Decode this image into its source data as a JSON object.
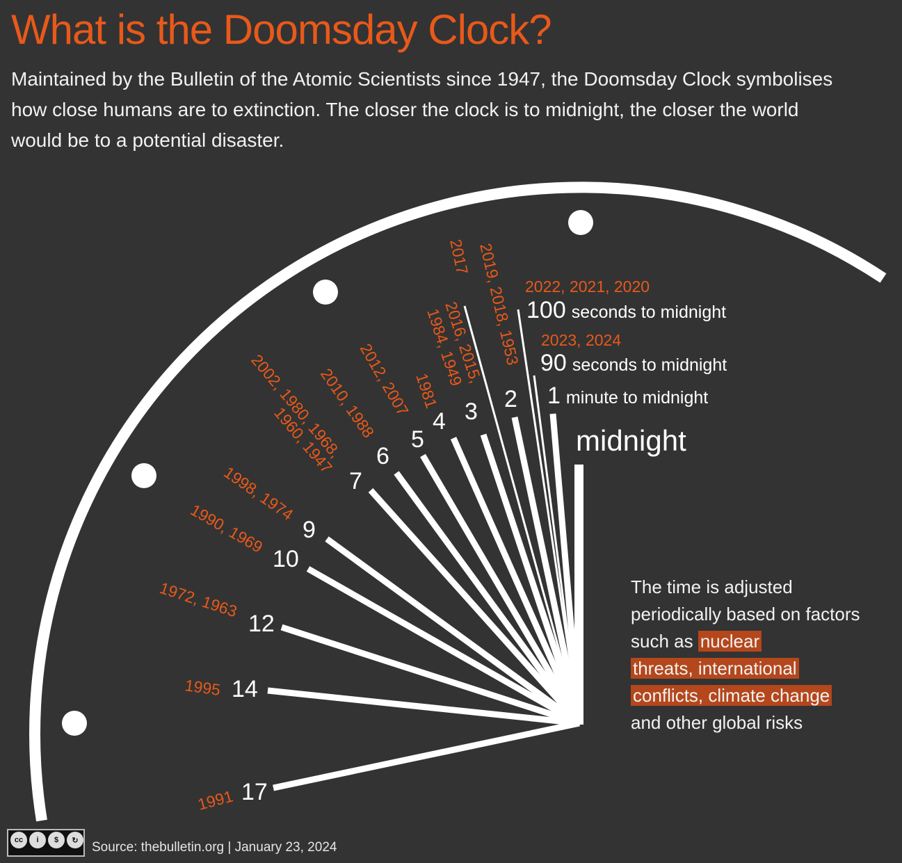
{
  "title": "What is the Doomsday Clock?",
  "intro": "Maintained by the Bulletin of the Atomic Scientists since 1947, the Doomsday Clock symbolises how close humans are to extinction. The closer the clock is to midnight, the closer the world would be to a potential disaster.",
  "colors": {
    "background": "#333333",
    "accent": "#e8591a",
    "hands": "#ffffff",
    "highlight": "#b4471c"
  },
  "clock": {
    "midnight_label": "midnight",
    "hands": [
      {
        "minutes": "17",
        "years": [
          "1991"
        ]
      },
      {
        "minutes": "14",
        "years": [
          "1995"
        ]
      },
      {
        "minutes": "12",
        "years": [
          "1972, 1963"
        ]
      },
      {
        "minutes": "10",
        "years": [
          "1990, 1969"
        ]
      },
      {
        "minutes": "9",
        "years": [
          "1998, 1974"
        ]
      },
      {
        "minutes": "7",
        "years": [
          "2002, 1980, 1968,",
          "1960, 1947"
        ]
      },
      {
        "minutes": "6",
        "years": [
          "2010, 1988"
        ]
      },
      {
        "minutes": "5",
        "years": [
          "2012, 2007"
        ]
      },
      {
        "minutes": "4",
        "years": [
          "1981"
        ]
      },
      {
        "minutes": "3",
        "years": [
          "2016, 2015,",
          "1984, 1949"
        ]
      },
      {
        "minutes": "2",
        "years": [
          "2019, 2018, 1953"
        ]
      },
      {
        "minutes": "",
        "years": [
          "2017"
        ]
      },
      {
        "minutes": "1",
        "suffix": "minute to midnight",
        "years": []
      },
      {
        "minutes": "90",
        "suffix": "seconds to midnight",
        "years": [
          "2023, 2024"
        ]
      },
      {
        "minutes": "100",
        "suffix": "seconds to midnight",
        "years": [
          "2022, 2021, 2020"
        ]
      }
    ]
  },
  "note": {
    "before": "The time is adjusted periodically based on factors such as ",
    "highlight1": "nuclear",
    "highlight2": "threats, international",
    "highlight3": "conflicts, climate change",
    "after": "and other global risks"
  },
  "footer": {
    "license_icons": [
      "cc",
      "by",
      "nc",
      "sa"
    ],
    "source": "Source: thebulletin.org  |  January 23, 2024"
  }
}
